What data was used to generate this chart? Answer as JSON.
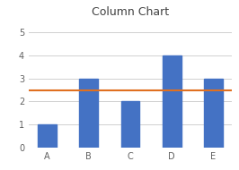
{
  "categories": [
    "A",
    "B",
    "C",
    "D",
    "E"
  ],
  "values": [
    1,
    3,
    2,
    4,
    3
  ],
  "bar_color": "#4472c4",
  "line_value": 2.5,
  "line_color": "#e07020",
  "title": "Column Chart",
  "title_fontsize": 9,
  "ylim": [
    0,
    5.5
  ],
  "yticks": [
    0,
    1,
    2,
    3,
    4,
    5
  ],
  "background_color": "#ffffff",
  "grid_color": "#d0d0d0",
  "tick_fontsize": 7,
  "bar_width": 0.45
}
